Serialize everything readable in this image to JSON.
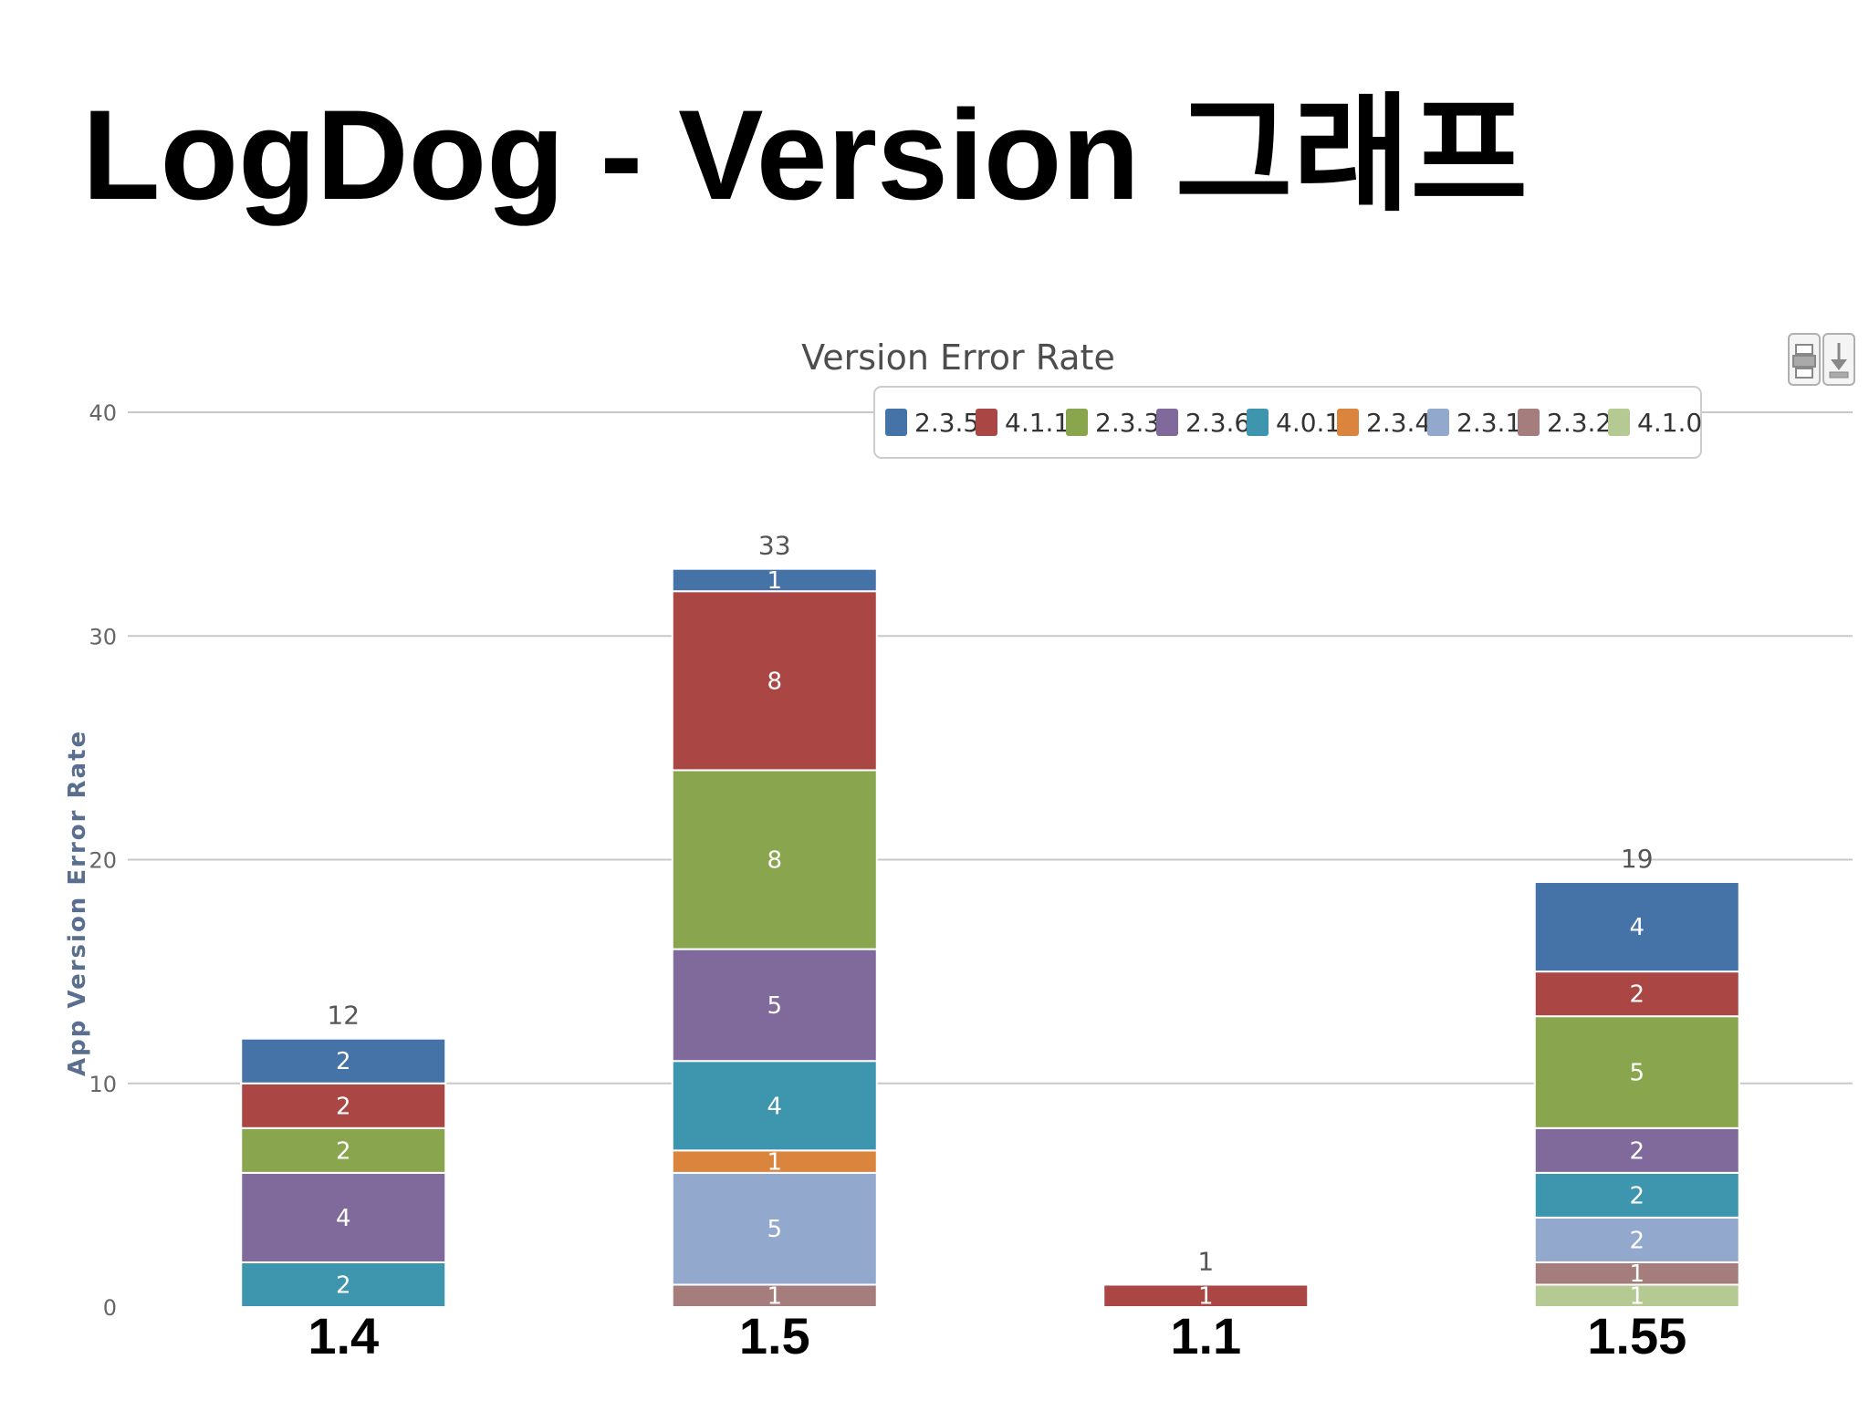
{
  "slide": {
    "title": "LogDog - Version 그래프"
  },
  "toolbar": {
    "print_icon": "printer-icon",
    "export_icon": "download-icon"
  },
  "chart_data": {
    "type": "bar",
    "stacked": true,
    "title": "Version Error Rate",
    "ylabel": "App Version Error Rate",
    "xlabel": "",
    "ylim": [
      0,
      40
    ],
    "yticks": [
      0,
      10,
      20,
      30,
      40
    ],
    "grid": true,
    "legend_position": "top-right",
    "categories": [
      "1.4",
      "1.5",
      "1.1",
      "1.55"
    ],
    "totals": [
      12,
      33,
      1,
      19
    ],
    "series": [
      {
        "name": "2.3.5",
        "color": "#4572a7",
        "values": [
          2,
          1,
          0,
          4
        ]
      },
      {
        "name": "4.1.1",
        "color": "#aa4643",
        "values": [
          2,
          8,
          1,
          2
        ]
      },
      {
        "name": "2.3.3",
        "color": "#89a54e",
        "values": [
          2,
          8,
          0,
          5
        ]
      },
      {
        "name": "2.3.6",
        "color": "#80699b",
        "values": [
          4,
          5,
          0,
          2
        ]
      },
      {
        "name": "4.0.1",
        "color": "#3d96ae",
        "values": [
          2,
          4,
          0,
          2
        ]
      },
      {
        "name": "2.3.4",
        "color": "#db843d",
        "values": [
          0,
          1,
          0,
          0
        ]
      },
      {
        "name": "2.3.1",
        "color": "#92a8cd",
        "values": [
          0,
          5,
          0,
          2
        ]
      },
      {
        "name": "2.3.2",
        "color": "#a47d7c",
        "values": [
          0,
          1,
          0,
          1
        ]
      },
      {
        "name": "4.1.0",
        "color": "#b5ca92",
        "values": [
          0,
          0,
          0,
          1
        ]
      }
    ]
  }
}
